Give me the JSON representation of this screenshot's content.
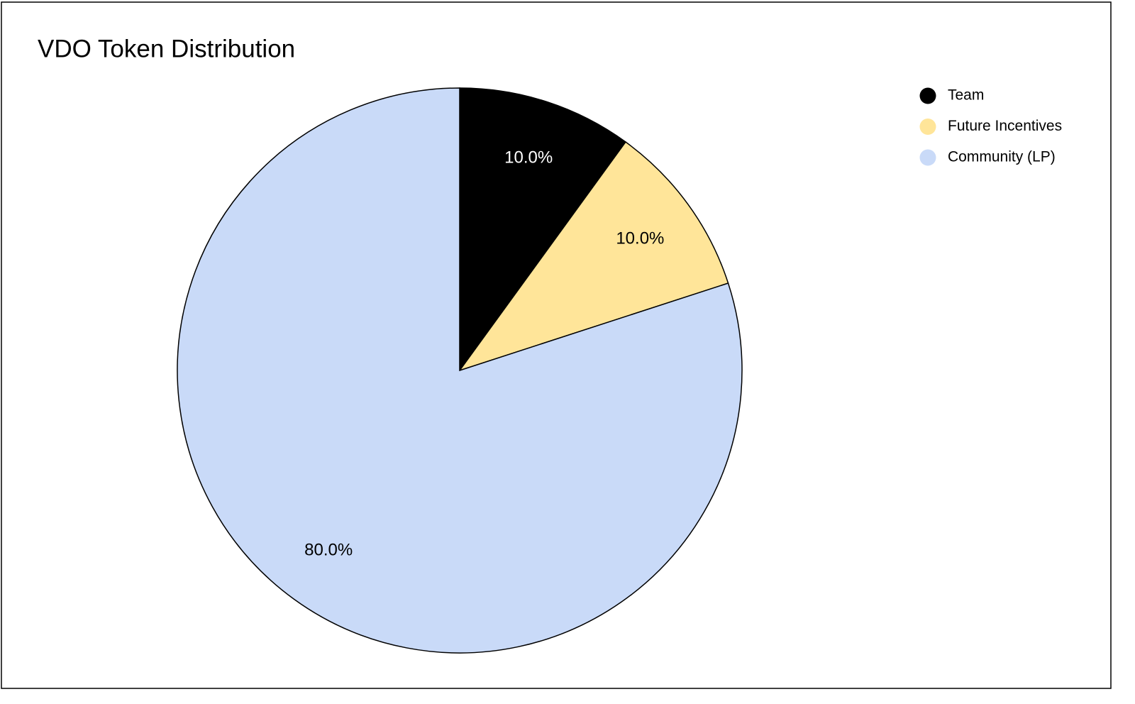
{
  "chart_data": {
    "type": "pie",
    "title": "VDO Token Distribution",
    "categories": [
      "Team",
      "Future Incentives",
      "Community (LP)"
    ],
    "values": [
      10,
      10,
      80
    ],
    "value_labels": [
      "10.0%",
      "10.0%",
      "80.0%"
    ],
    "colors": [
      "#000000",
      "#ffe599",
      "#c9daf8"
    ],
    "legend": "top-right"
  }
}
